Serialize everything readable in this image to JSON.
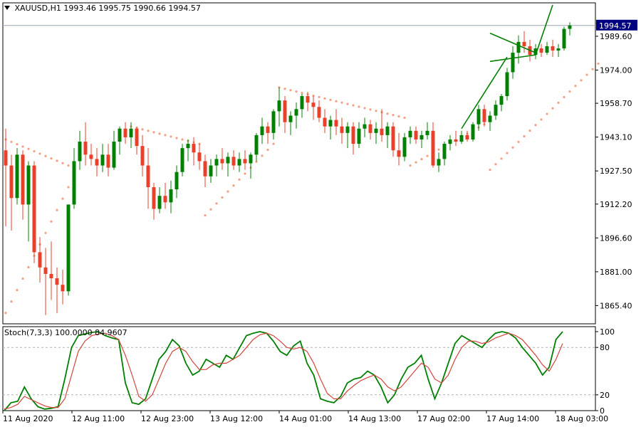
{
  "header": {
    "symbol": "XAUUSD,H1",
    "ohlc": "1993.46 1995.75 1990.66 1994.57"
  },
  "stoch_label": "Stoch(7,3,3) 100.0000 84.9607",
  "colors": {
    "bull": "#008000",
    "bear": "#e8402a",
    "sar": "#f5a082",
    "stoch_main": "#008000",
    "stoch_signal": "#d2463c",
    "current_price_bg": "#000080",
    "trendline": "#008000"
  },
  "chart_data": [
    {
      "type": "candlestick",
      "title": "XAUUSD,H1",
      "ylim": [
        1857,
        2005
      ],
      "current_price": "1994.57",
      "y_ticks": [
        "1989.60",
        "1974.00",
        "1958.70",
        "1943.10",
        "1927.50",
        "1912.20",
        "1896.60",
        "1881.00",
        "1865.40"
      ],
      "x_labels": [
        "11 Aug 2020",
        "12 Aug 11:00",
        "12 Aug 23:00",
        "13 Aug 12:00",
        "14 Aug 01:00",
        "14 Aug 13:00",
        "17 Aug 02:00",
        "17 Aug 14:00",
        "18 Aug 03:00"
      ],
      "candles": [
        [
          1937,
          1947,
          1902,
          1930
        ],
        [
          1930,
          1935,
          1900,
          1915
        ],
        [
          1915,
          1938,
          1912,
          1935
        ],
        [
          1935,
          1937,
          1905,
          1912
        ],
        [
          1912,
          1932,
          1895,
          1930
        ],
        [
          1930,
          1932,
          1885,
          1890
        ],
        [
          1890,
          1897,
          1876,
          1883
        ],
        [
          1883,
          1892,
          1861,
          1880
        ],
        [
          1880,
          1895,
          1868,
          1878
        ],
        [
          1878,
          1883,
          1862,
          1875
        ],
        [
          1875,
          1882,
          1866,
          1872
        ],
        [
          1872,
          1912,
          1870,
          1912
        ],
        [
          1912,
          1938,
          1910,
          1932
        ],
        [
          1932,
          1946,
          1928,
          1941
        ],
        [
          1941,
          1950,
          1930,
          1935
        ],
        [
          1935,
          1940,
          1930,
          1933
        ],
        [
          1933,
          1938,
          1925,
          1930
        ],
        [
          1930,
          1940,
          1927,
          1935
        ],
        [
          1935,
          1940,
          1925,
          1929
        ],
        [
          1929,
          1946,
          1928,
          1941
        ],
        [
          1941,
          1948,
          1935,
          1947
        ],
        [
          1947,
          1950,
          1940,
          1943
        ],
        [
          1943,
          1950,
          1938,
          1947
        ],
        [
          1947,
          1948,
          1935,
          1939
        ],
        [
          1939,
          1944,
          1925,
          1930
        ],
        [
          1930,
          1938,
          1910,
          1920
        ],
        [
          1920,
          1922,
          1905,
          1910
        ],
        [
          1910,
          1920,
          1908,
          1916
        ],
        [
          1916,
          1922,
          1910,
          1913
        ],
        [
          1913,
          1923,
          1908,
          1919
        ],
        [
          1919,
          1930,
          1915,
          1927
        ],
        [
          1927,
          1940,
          1925,
          1938
        ],
        [
          1938,
          1942,
          1932,
          1940
        ],
        [
          1940,
          1943,
          1930,
          1936
        ],
        [
          1936,
          1940,
          1928,
          1932
        ],
        [
          1932,
          1935,
          1920,
          1925
        ],
        [
          1925,
          1933,
          1922,
          1930
        ],
        [
          1930,
          1935,
          1925,
          1933
        ],
        [
          1933,
          1938,
          1928,
          1931
        ],
        [
          1931,
          1936,
          1925,
          1934
        ],
        [
          1934,
          1937,
          1928,
          1930
        ],
        [
          1930,
          1936,
          1927,
          1933
        ],
        [
          1933,
          1937,
          1928,
          1931
        ],
        [
          1931,
          1936,
          1924,
          1935
        ],
        [
          1935,
          1945,
          1932,
          1944
        ],
        [
          1944,
          1952,
          1940,
          1948
        ],
        [
          1948,
          1950,
          1940,
          1945
        ],
        [
          1945,
          1956,
          1942,
          1955
        ],
        [
          1955,
          1966,
          1948,
          1960
        ],
        [
          1960,
          1962,
          1945,
          1950
        ],
        [
          1950,
          1955,
          1944,
          1953
        ],
        [
          1953,
          1959,
          1947,
          1956
        ],
        [
          1956,
          1963,
          1952,
          1962
        ],
        [
          1962,
          1964,
          1955,
          1959
        ],
        [
          1959,
          1962,
          1951,
          1957
        ],
        [
          1957,
          1960,
          1950,
          1952
        ],
        [
          1952,
          1956,
          1945,
          1948
        ],
        [
          1948,
          1953,
          1942,
          1951
        ],
        [
          1951,
          1956,
          1944,
          1948
        ],
        [
          1948,
          1952,
          1940,
          1945
        ],
        [
          1945,
          1950,
          1938,
          1948
        ],
        [
          1948,
          1950,
          1935,
          1940
        ],
        [
          1940,
          1950,
          1938,
          1947
        ],
        [
          1947,
          1952,
          1943,
          1949
        ],
        [
          1949,
          1951,
          1942,
          1945
        ],
        [
          1945,
          1950,
          1940,
          1947
        ],
        [
          1947,
          1956,
          1941,
          1944
        ],
        [
          1944,
          1950,
          1938,
          1948
        ],
        [
          1948,
          1950,
          1934,
          1937
        ],
        [
          1937,
          1945,
          1930,
          1934
        ],
        [
          1934,
          1945,
          1932,
          1943
        ],
        [
          1943,
          1948,
          1940,
          1946
        ],
        [
          1946,
          1948,
          1940,
          1942
        ],
        [
          1942,
          1946,
          1938,
          1944
        ],
        [
          1944,
          1950,
          1942,
          1946
        ],
        [
          1946,
          1950,
          1929,
          1930
        ],
        [
          1930,
          1936,
          1927,
          1933
        ],
        [
          1933,
          1941,
          1930,
          1940
        ],
        [
          1940,
          1944,
          1937,
          1942
        ],
        [
          1942,
          1946,
          1939,
          1941
        ],
        [
          1941,
          1946,
          1940,
          1944
        ],
        [
          1944,
          1946,
          1941,
          1942
        ],
        [
          1942,
          1950,
          1941,
          1949
        ],
        [
          1949,
          1958,
          1946,
          1956
        ],
        [
          1956,
          1958,
          1948,
          1950
        ],
        [
          1950,
          1955,
          1946,
          1953
        ],
        [
          1953,
          1960,
          1951,
          1958
        ],
        [
          1958,
          1963,
          1955,
          1962
        ],
        [
          1962,
          1975,
          1960,
          1973
        ],
        [
          1973,
          1985,
          1970,
          1982
        ],
        [
          1982,
          1990,
          1977,
          1987
        ],
        [
          1987,
          1992,
          1982,
          1985
        ],
        [
          1985,
          1988,
          1978,
          1981
        ],
        [
          1981,
          1986,
          1979,
          1984
        ],
        [
          1984,
          1986,
          1980,
          1982
        ],
        [
          1982,
          1987,
          1981,
          1985
        ],
        [
          1985,
          1988,
          1980,
          1983
        ],
        [
          1983,
          1986,
          1980,
          1984
        ],
        [
          1984,
          1994,
          1983,
          1993
        ],
        [
          1993,
          1996,
          1990,
          1994.57
        ]
      ],
      "sar": [
        {
          "from": 0,
          "to": 11,
          "start": 1942,
          "end": 1930
        },
        {
          "from": 0,
          "to": 11,
          "start": 1862,
          "end": 1920
        },
        {
          "from": 22,
          "to": 34,
          "start": 1948,
          "end": 1940
        },
        {
          "from": 35,
          "to": 47,
          "start": 1907,
          "end": 1940
        },
        {
          "from": 48,
          "to": 70,
          "start": 1966,
          "end": 1952
        },
        {
          "from": 71,
          "to": 84,
          "start": 1930,
          "end": 1949
        },
        {
          "from": 85,
          "to": 104,
          "start": 1928,
          "end": 1977
        }
      ],
      "trendlines": [
        {
          "i1": 80,
          "y1": 1947,
          "i2": 88,
          "y2": 1980
        },
        {
          "i1": 85,
          "y1": 1978,
          "i2": 93,
          "y2": 1981
        },
        {
          "i1": 85,
          "y1": 1991,
          "i2": 93,
          "y2": 1982
        },
        {
          "i1": 93,
          "y1": 1981,
          "i2": 96,
          "y2": 2004
        }
      ]
    },
    {
      "type": "line",
      "title": "Stoch(7,3,3)",
      "ylim": [
        0,
        100
      ],
      "levels": [
        20,
        80
      ],
      "y_ticks": [
        "100",
        "80",
        "20",
        "0"
      ],
      "series": [
        {
          "key": "main",
          "values": [
            0,
            10,
            12,
            30,
            15,
            5,
            2,
            3,
            5,
            40,
            80,
            95,
            97,
            99,
            100,
            95,
            92,
            90,
            35,
            10,
            8,
            15,
            40,
            65,
            75,
            90,
            82,
            60,
            45,
            50,
            65,
            60,
            55,
            70,
            65,
            80,
            95,
            98,
            100,
            98,
            88,
            75,
            70,
            82,
            88,
            60,
            45,
            15,
            12,
            10,
            18,
            35,
            40,
            42,
            50,
            45,
            30,
            10,
            20,
            40,
            55,
            60,
            70,
            40,
            15,
            35,
            60,
            85,
            95,
            90,
            85,
            80,
            90,
            98,
            100,
            98,
            92,
            80,
            70,
            60,
            45,
            55,
            90,
            100
          ]
        },
        {
          "key": "signal",
          "values": [
            2,
            4,
            8,
            18,
            14,
            10,
            6,
            4,
            4,
            15,
            45,
            75,
            88,
            95,
            97,
            98,
            95,
            90,
            70,
            45,
            18,
            12,
            20,
            40,
            60,
            75,
            80,
            75,
            62,
            52,
            52,
            58,
            60,
            60,
            65,
            70,
            80,
            90,
            96,
            98,
            95,
            88,
            80,
            78,
            80,
            75,
            60,
            40,
            22,
            15,
            15,
            25,
            32,
            38,
            42,
            45,
            40,
            30,
            25,
            30,
            40,
            50,
            60,
            55,
            40,
            35,
            45,
            65,
            80,
            88,
            88,
            85,
            87,
            92,
            95,
            98,
            95,
            90,
            80,
            70,
            58,
            50,
            65,
            85
          ]
        }
      ]
    }
  ]
}
